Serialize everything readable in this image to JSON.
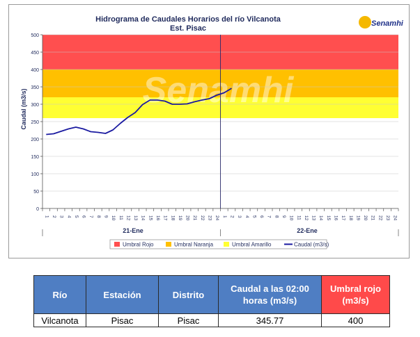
{
  "chart": {
    "title_line1": "Hidrograma de Caudales Horarios del río Vilcanota",
    "title_line2": "Est. Pisac",
    "logo_text": "Senamhi",
    "watermark_text": "Senamhi",
    "ylabel": "Caudal  (m3/s)",
    "day_labels": [
      "21-Ene",
      "22-Ene"
    ]
  },
  "chart_data": {
    "type": "line",
    "title": "Hidrograma de Caudales Horarios del río Vilcanota",
    "subtitle": "Est. Pisac",
    "ylabel": "Caudal  (m3/s)",
    "ylim": [
      0,
      500
    ],
    "yticks": [
      0,
      50,
      100,
      150,
      200,
      250,
      300,
      350,
      400,
      450,
      500
    ],
    "x_tick_labels": [
      "1",
      "2",
      "3",
      "4",
      "5",
      "6",
      "7",
      "8",
      "9",
      "10",
      "11",
      "12",
      "13",
      "14",
      "15",
      "16",
      "17",
      "18",
      "19",
      "20",
      "21",
      "22",
      "23",
      "24",
      "1",
      "2",
      "3",
      "4",
      "5",
      "6",
      "7",
      "8",
      "9",
      "10",
      "11",
      "12",
      "13",
      "14",
      "15",
      "16",
      "17",
      "18",
      "19",
      "20",
      "21",
      "22",
      "23",
      "24"
    ],
    "day_groups": [
      "21-Ene",
      "22-Ene"
    ],
    "thresholds": [
      {
        "name": "Umbral Rojo",
        "from": 400,
        "to": 500,
        "color": "#ff4f4f"
      },
      {
        "name": "Umbral Naranja",
        "from": 320,
        "to": 400,
        "color": "#ffc000"
      },
      {
        "name": "Umbral Amarillo",
        "from": 260,
        "to": 320,
        "color": "#ffff33"
      }
    ],
    "series": [
      {
        "name": "Caudal (m3/s)",
        "color": "#1a1aa0",
        "values": [
          213,
          215,
          222,
          229,
          234,
          229,
          221,
          219,
          216,
          226,
          245,
          262,
          276,
          299,
          312,
          312,
          309,
          300,
          300,
          301,
          307,
          312,
          316,
          326,
          333,
          345.77
        ]
      }
    ],
    "grid": true,
    "legend": "bottom"
  },
  "legend": {
    "items": [
      {
        "label": "Umbral Rojo",
        "color": "#ff4f4f",
        "kind": "box"
      },
      {
        "label": "Umbral Naranja",
        "color": "#ffc000",
        "kind": "box"
      },
      {
        "label": "Umbral Amarillo",
        "color": "#ffff33",
        "kind": "box"
      },
      {
        "label": "Caudal (m3/s)",
        "color": "#1a1aa0",
        "kind": "line"
      }
    ]
  },
  "table": {
    "headers": [
      "Río",
      "Estación",
      "Distrito",
      "Caudal a las 02:00 horas (m3/s)",
      "Umbral rojo (m3/s)"
    ],
    "row": [
      "Vilcanota",
      "Pisac",
      "Pisac",
      "345.77",
      "400"
    ]
  }
}
